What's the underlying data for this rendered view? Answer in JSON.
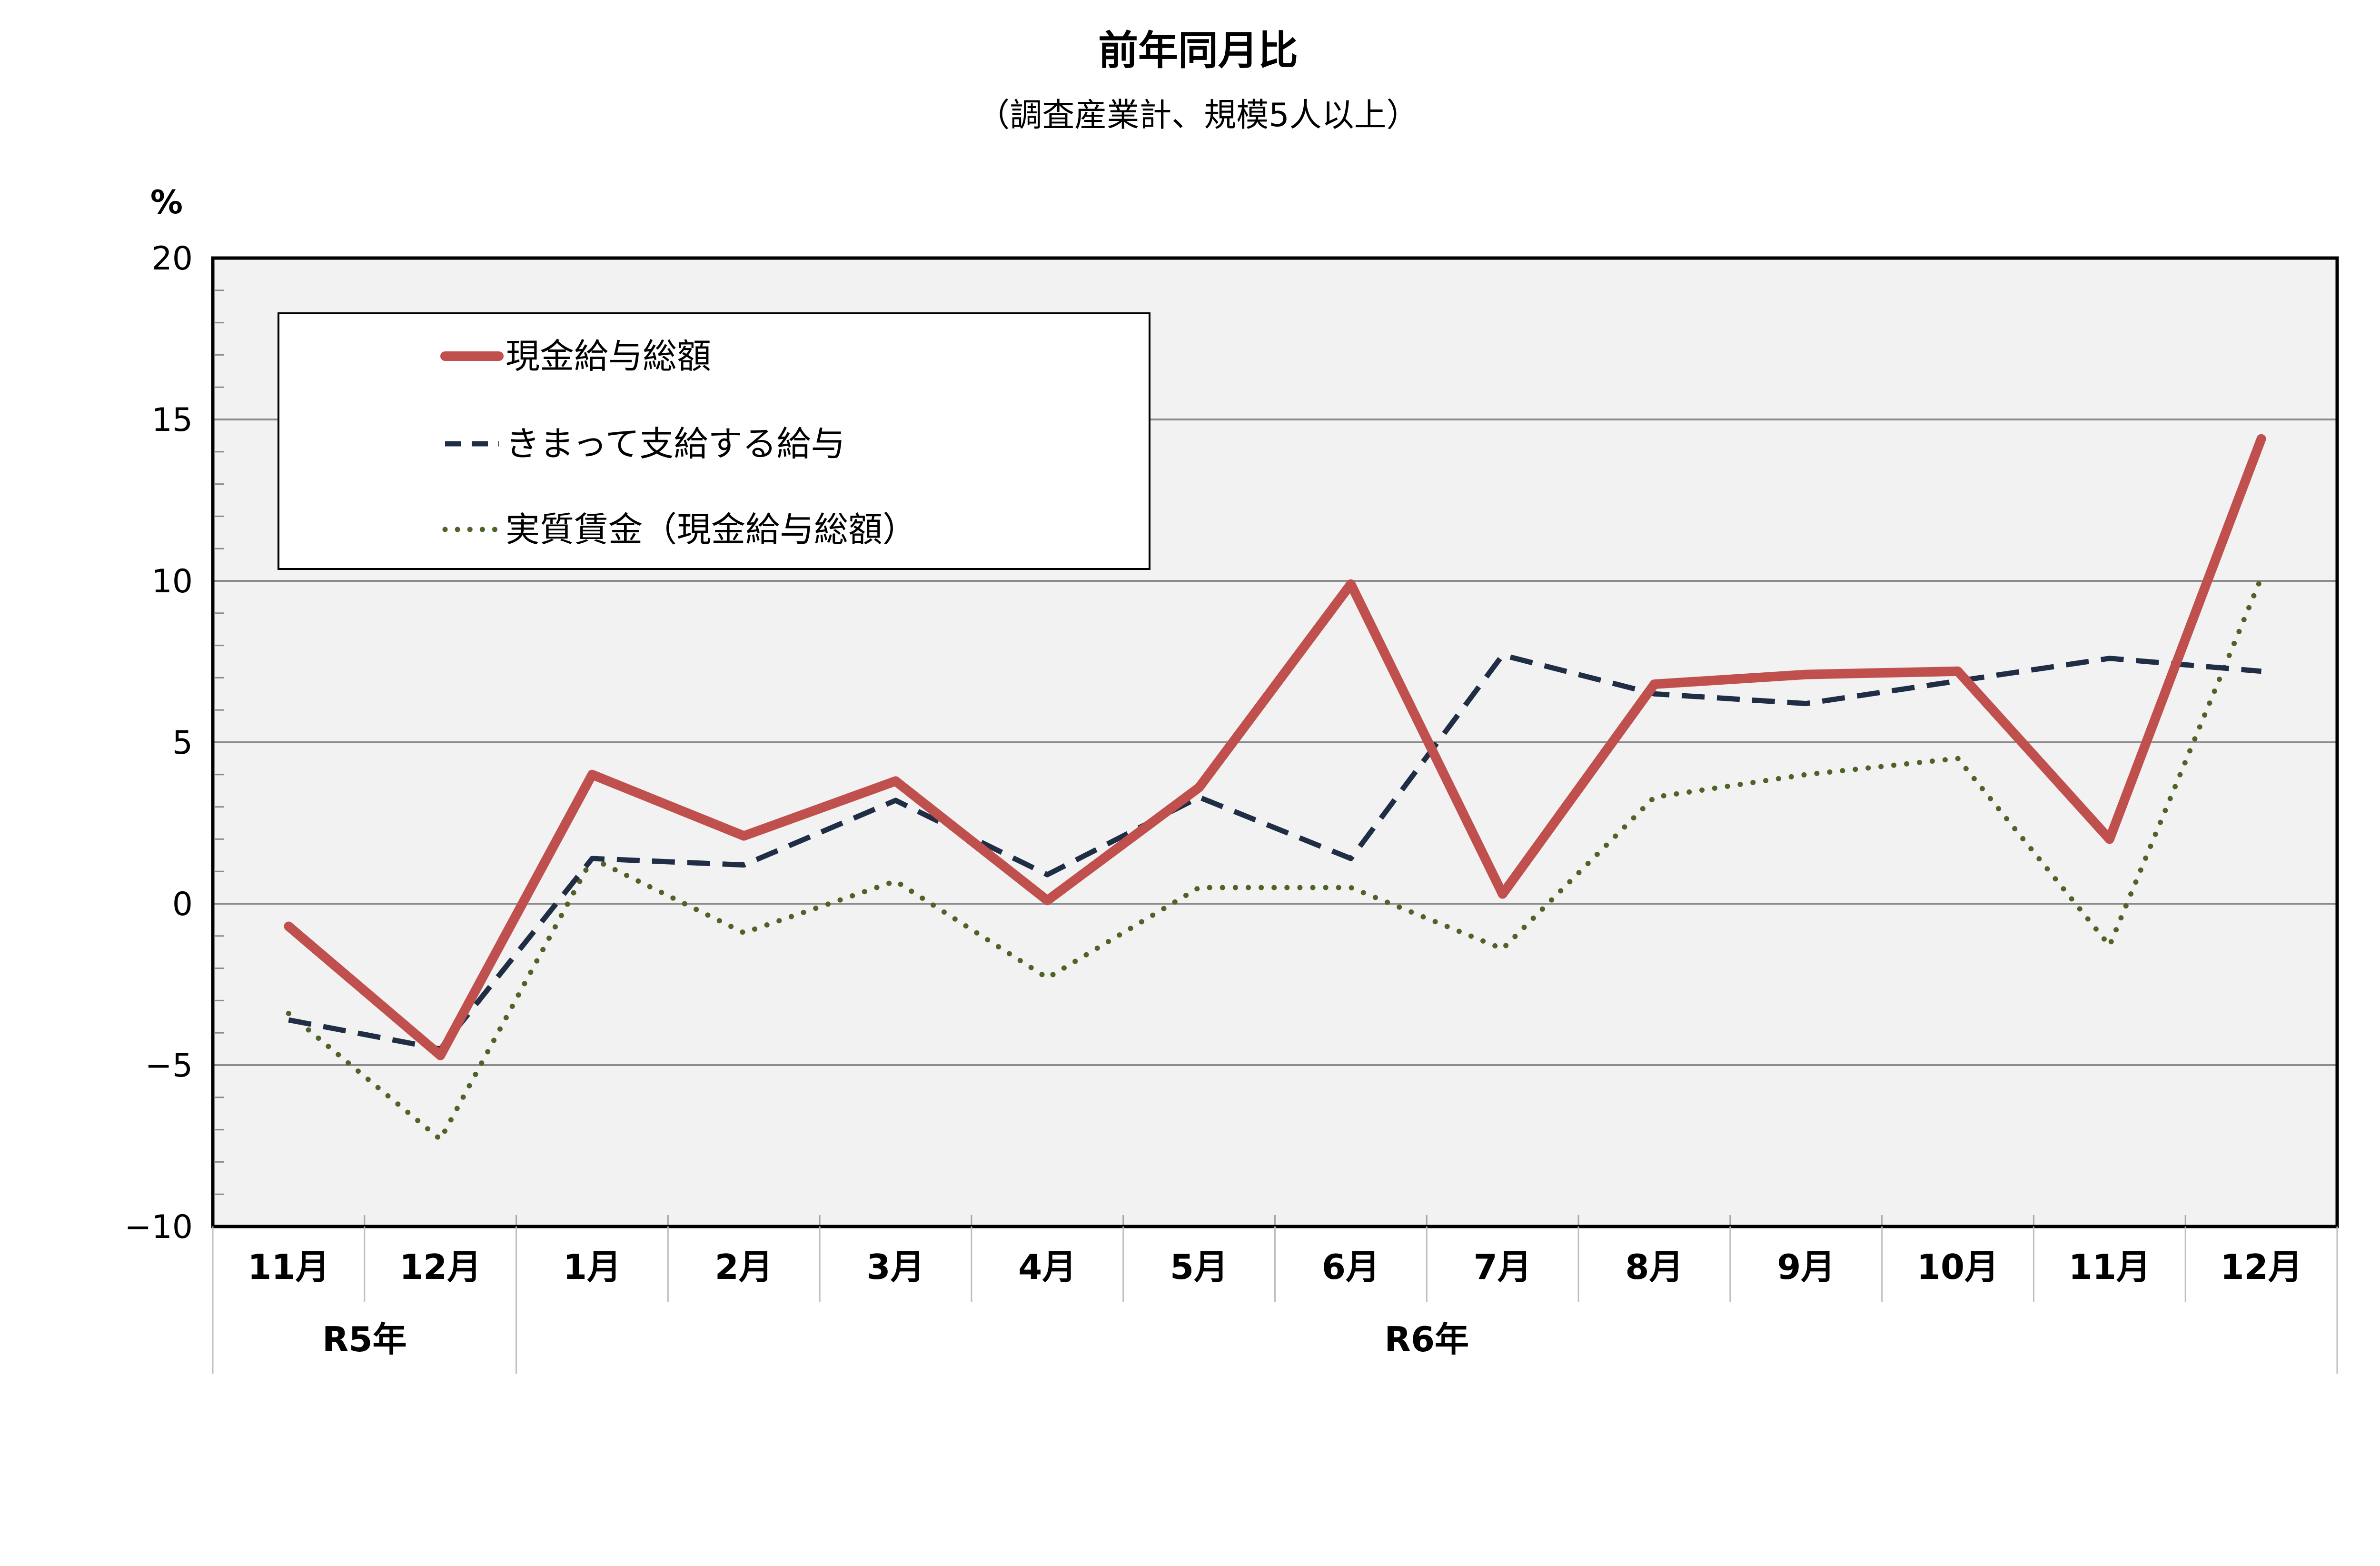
{
  "chart_data": {
    "type": "line",
    "title": "前年同月比",
    "subtitle": "（調査産業計、規模5人以上）",
    "y_unit": "%",
    "ylim": [
      -10,
      20
    ],
    "y_ticks": [
      -10,
      -5,
      0,
      5,
      10,
      15,
      20
    ],
    "y_tick_labels": [
      "−10",
      "−5",
      "0",
      "5",
      "10",
      "15",
      "20"
    ],
    "grid": true,
    "legend_position": "top-left",
    "categories": [
      "11月",
      "12月",
      "1月",
      "2月",
      "3月",
      "4月",
      "5月",
      "6月",
      "7月",
      "8月",
      "9月",
      "10月",
      "11月",
      "12月"
    ],
    "year_groups": [
      {
        "label": "R5年",
        "span": 2
      },
      {
        "label": "R6年",
        "span": 12
      }
    ],
    "series": [
      {
        "name": "現金給与総額",
        "color": "#c0504d",
        "style": "solid",
        "values": [
          -0.7,
          -4.7,
          4.0,
          2.1,
          3.8,
          0.1,
          3.6,
          9.9,
          0.3,
          6.8,
          7.1,
          7.2,
          2.0,
          14.4
        ]
      },
      {
        "name": "きまって支給する給与",
        "color": "#1f2d45",
        "style": "dashed",
        "values": [
          -3.6,
          -4.5,
          1.4,
          1.2,
          3.2,
          0.9,
          3.3,
          1.4,
          7.7,
          6.5,
          6.2,
          6.9,
          7.6,
          7.2
        ]
      },
      {
        "name": "実質賃金（現金給与総額）",
        "color": "#4f6228",
        "style": "dotted",
        "values": [
          -3.4,
          -7.3,
          1.4,
          -0.9,
          0.7,
          -2.3,
          0.5,
          0.5,
          -1.4,
          3.3,
          4.0,
          4.5,
          -1.3,
          10.1
        ]
      }
    ]
  }
}
